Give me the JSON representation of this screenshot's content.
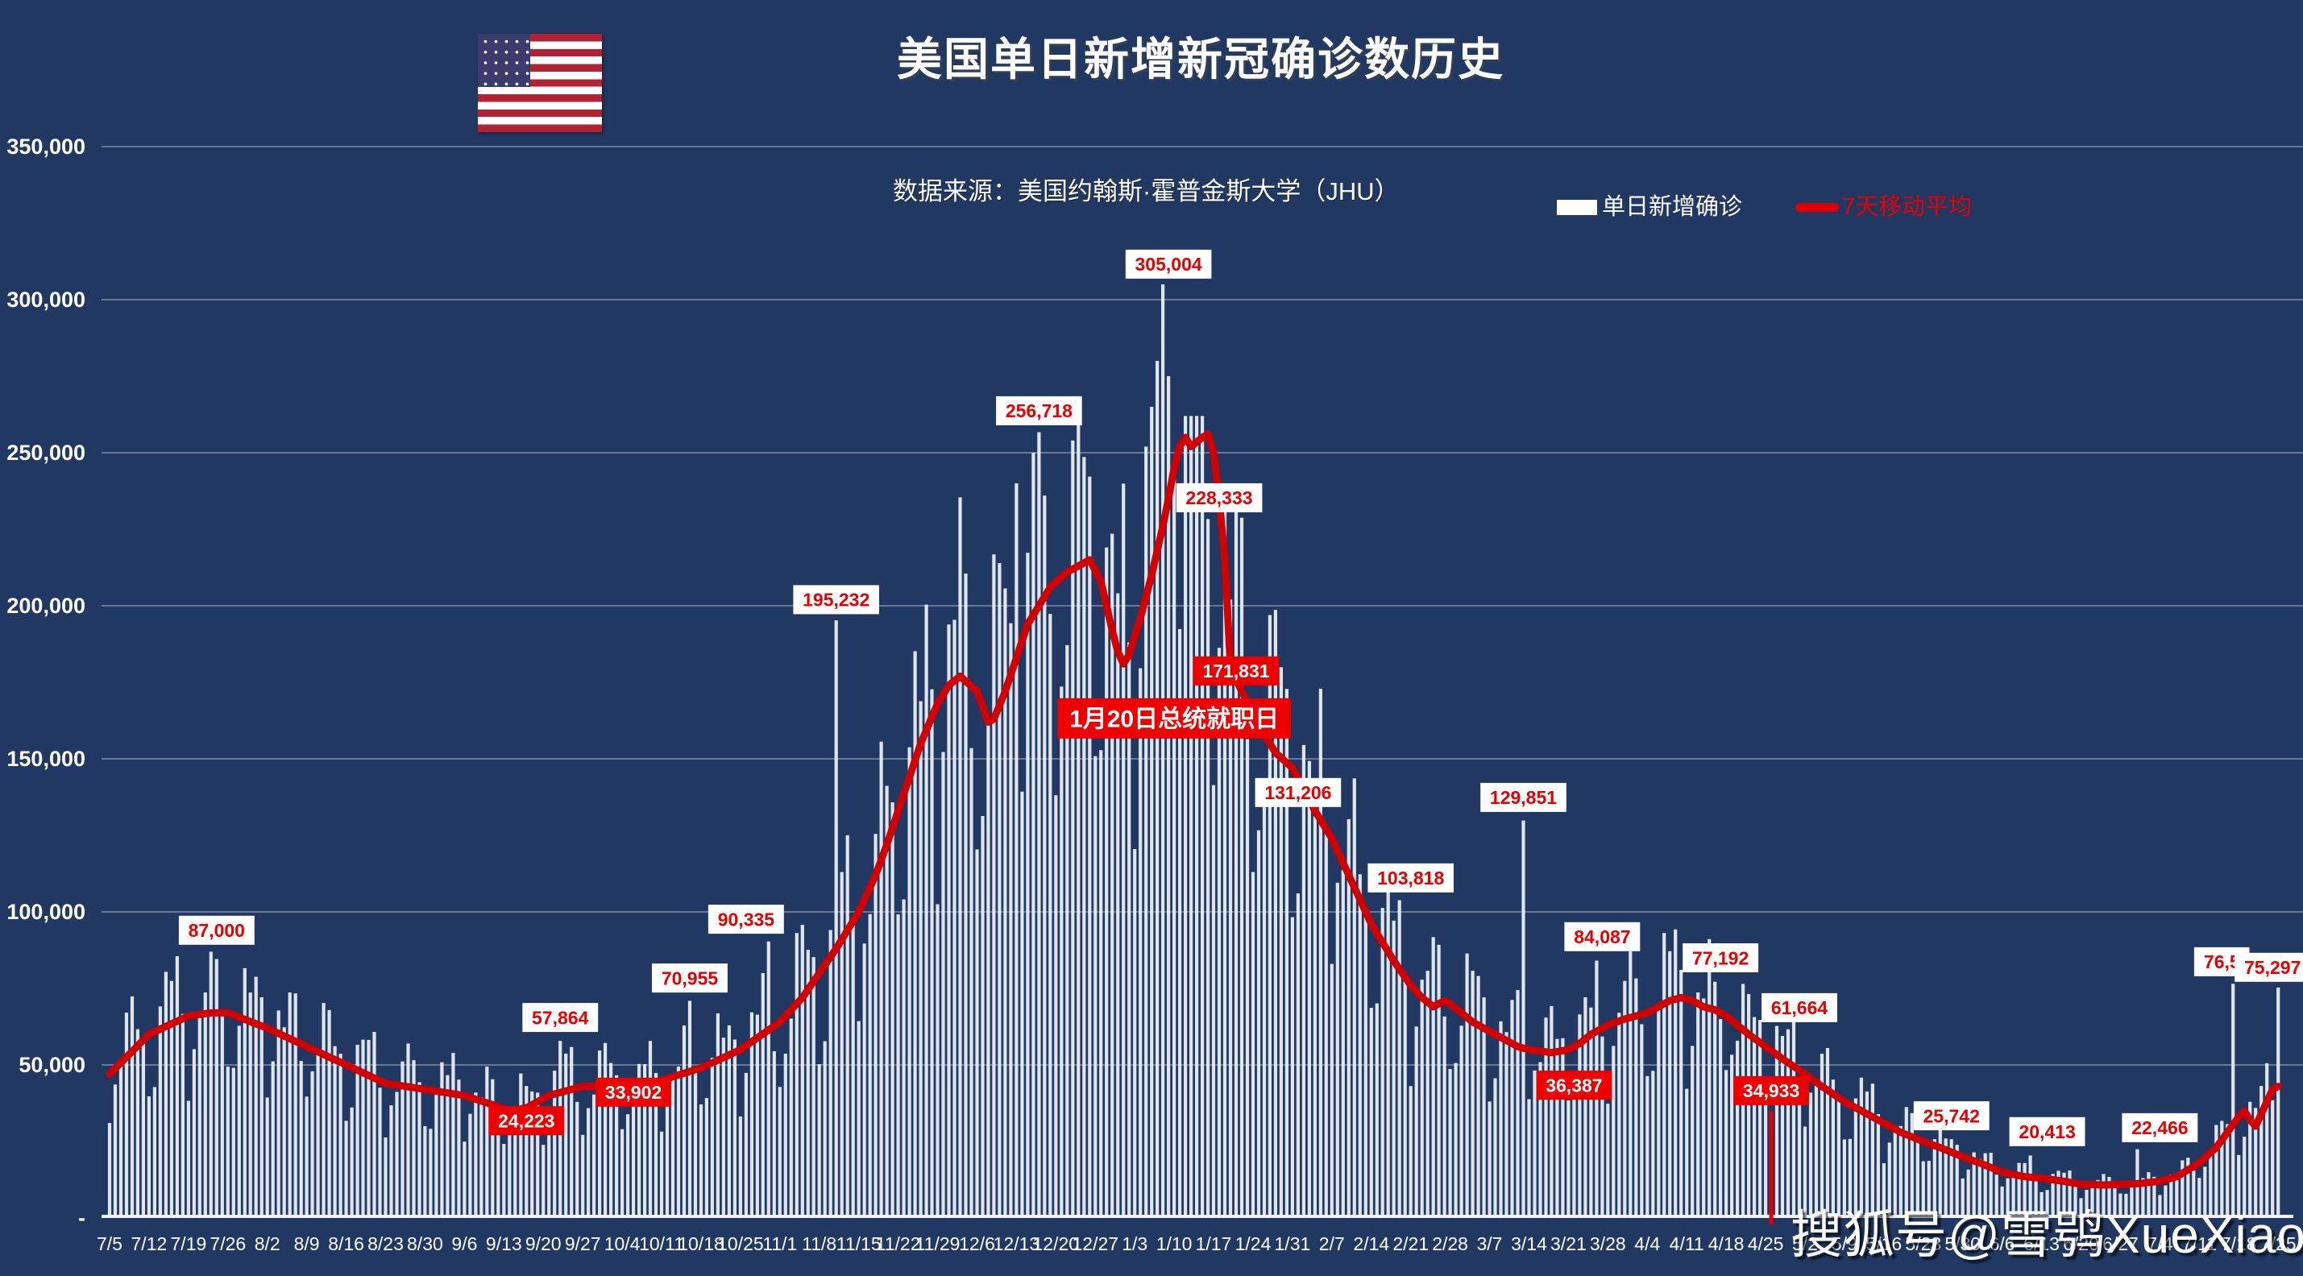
{
  "header": {
    "title": "美国单日新增新冠确诊数历史",
    "source": "数据来源：美国约翰斯·霍普金斯大学（JHU）",
    "legend_bar_label": "单日新增确诊",
    "legend_line_label": "7天移动平均"
  },
  "watermark": "搜狐号@雪鸮XueXiao",
  "colors": {
    "background": "#213862",
    "bar": "#eef2f8",
    "highlight_bar": "#e80000",
    "ma_line": "#d20000",
    "grid": "rgba(255,255,255,0.32)",
    "axis": "#f5f5f5",
    "tick_text": "#ffffff",
    "box_light_bg": "#ffffff",
    "box_light_text": "#e60000",
    "box_dark_bg": "#ef0000",
    "box_dark_text": "#ffffff"
  },
  "chart_data": {
    "type": "bar",
    "title": "美国单日新增新冠确诊数历史",
    "xlabel": "",
    "ylabel": "",
    "ylim": [
      0,
      350000
    ],
    "grid": true,
    "legend_position": "top",
    "n_days": 386,
    "x_tick_labels": [
      "7/5",
      "7/12",
      "7/19",
      "7/26",
      "8/2",
      "8/9",
      "8/16",
      "8/23",
      "8/30",
      "9/6",
      "9/13",
      "9/20",
      "9/27",
      "10/4",
      "10/11",
      "10/18",
      "10/25",
      "11/1",
      "11/8",
      "11/15",
      "11/22",
      "11/29",
      "12/6",
      "12/13",
      "12/20",
      "12/27",
      "1/3",
      "1/10",
      "1/17",
      "1/24",
      "1/31",
      "2/7",
      "2/14",
      "2/21",
      "2/28",
      "3/7",
      "3/14",
      "3/21",
      "3/28",
      "4/4",
      "4/11",
      "4/18",
      "4/25",
      "5/2",
      "5/9",
      "5/16",
      "5/23",
      "5/30",
      "6/6",
      "6/13",
      "6/20",
      "6/27",
      "7/4",
      "7/11",
      "7/18",
      "7/25"
    ],
    "y_ticks": [
      {
        "value": 350000,
        "label": "350,000"
      },
      {
        "value": 300000,
        "label": "300,000"
      },
      {
        "value": 250000,
        "label": "250,000"
      },
      {
        "value": 200000,
        "label": "200,000"
      },
      {
        "value": 150000,
        "label": "150,000"
      },
      {
        "value": 100000,
        "label": "100,000"
      },
      {
        "value": 50000,
        "label": "50,000"
      },
      {
        "value": 0,
        "label": "-"
      }
    ],
    "series": [
      {
        "name": "单日新增确诊",
        "type": "bar",
        "weekday_pattern": [
          0.66,
          0.8,
          1.04,
          1.2,
          1.28,
          1.25,
          1.02
        ],
        "overrides": {
          "18": 87000,
          "70": 24223,
          "80": 57864,
          "92": 33902,
          "103": 70955,
          "117": 90335,
          "129": 195232,
          "161": 240000,
          "164": 250000,
          "165": 256718,
          "166": 236000,
          "184": 252000,
          "185": 265000,
          "186": 280000,
          "187": 305004,
          "188": 275000,
          "189": 246000,
          "195": 228333,
          "214": 131206,
          "229": 103818,
          "251": 129851,
          "264": 84087,
          "285": 77192,
          "298": 61664,
          "324": 25742,
          "341": 20413,
          "360": 22466,
          "377": 76500,
          "385": 75297
        }
      },
      {
        "name": "7天移动平均",
        "type": "line",
        "points": [
          [
            0,
            47000
          ],
          [
            7,
            60000
          ],
          [
            14,
            66000
          ],
          [
            18,
            67000
          ],
          [
            21,
            67000
          ],
          [
            28,
            62000
          ],
          [
            35,
            56000
          ],
          [
            42,
            50000
          ],
          [
            49,
            44000
          ],
          [
            56,
            42000
          ],
          [
            63,
            40000
          ],
          [
            68,
            37000
          ],
          [
            71,
            35000
          ],
          [
            74,
            36000
          ],
          [
            78,
            40000
          ],
          [
            84,
            43000
          ],
          [
            91,
            43000
          ],
          [
            94,
            42000
          ],
          [
            98,
            45000
          ],
          [
            105,
            49000
          ],
          [
            112,
            55000
          ],
          [
            119,
            64000
          ],
          [
            123,
            72000
          ],
          [
            126,
            80000
          ],
          [
            129,
            88000
          ],
          [
            133,
            100000
          ],
          [
            136,
            112000
          ],
          [
            138,
            122000
          ],
          [
            140,
            133000
          ],
          [
            142,
            144000
          ],
          [
            144,
            155000
          ],
          [
            147,
            168000
          ],
          [
            149,
            174000
          ],
          [
            151,
            177000
          ],
          [
            154,
            172000
          ],
          [
            156,
            162000
          ],
          [
            157,
            163000
          ],
          [
            159,
            172000
          ],
          [
            161,
            183000
          ],
          [
            163,
            194000
          ],
          [
            165,
            200000
          ],
          [
            167,
            206000
          ],
          [
            170,
            211000
          ],
          [
            172,
            213000
          ],
          [
            174,
            215000
          ],
          [
            176,
            208000
          ],
          [
            177,
            200000
          ],
          [
            178,
            192000
          ],
          [
            179,
            185000
          ],
          [
            180,
            181000
          ],
          [
            181,
            184000
          ],
          [
            183,
            196000
          ],
          [
            185,
            210000
          ],
          [
            186,
            218000
          ],
          [
            187,
            226000
          ],
          [
            188,
            235000
          ],
          [
            189,
            245000
          ],
          [
            190,
            252000
          ],
          [
            191,
            255000
          ],
          [
            192,
            252000
          ],
          [
            194,
            255000
          ],
          [
            195,
            256000
          ],
          [
            196,
            250000
          ],
          [
            197,
            235000
          ],
          [
            198,
            215000
          ],
          [
            199,
            180000
          ],
          [
            201,
            172000
          ],
          [
            203,
            165000
          ],
          [
            205,
            158000
          ],
          [
            207,
            152000
          ],
          [
            210,
            147000
          ],
          [
            212,
            140000
          ],
          [
            214,
            133000
          ],
          [
            217,
            124000
          ],
          [
            220,
            112000
          ],
          [
            222,
            104000
          ],
          [
            224,
            96000
          ],
          [
            226,
            90000
          ],
          [
            228,
            84000
          ],
          [
            231,
            76000
          ],
          [
            233,
            72000
          ],
          [
            235,
            69000
          ],
          [
            237,
            71000
          ],
          [
            238,
            70000
          ],
          [
            240,
            67000
          ],
          [
            242,
            64000
          ],
          [
            245,
            61000
          ],
          [
            248,
            58000
          ],
          [
            250,
            56000
          ],
          [
            252,
            55000
          ],
          [
            256,
            54000
          ],
          [
            259,
            55000
          ],
          [
            261,
            57000
          ],
          [
            263,
            60000
          ],
          [
            266,
            63000
          ],
          [
            269,
            65000
          ],
          [
            271,
            66000
          ],
          [
            273,
            67000
          ],
          [
            275,
            69000
          ],
          [
            277,
            71000
          ],
          [
            279,
            72000
          ],
          [
            281,
            71000
          ],
          [
            283,
            69000
          ],
          [
            285,
            68000
          ],
          [
            287,
            66000
          ],
          [
            289,
            63000
          ],
          [
            291,
            60000
          ],
          [
            294,
            56000
          ],
          [
            297,
            52000
          ],
          [
            301,
            47000
          ],
          [
            304,
            43000
          ],
          [
            308,
            38000
          ],
          [
            311,
            35000
          ],
          [
            315,
            31000
          ],
          [
            318,
            28000
          ],
          [
            322,
            25000
          ],
          [
            325,
            23000
          ],
          [
            329,
            20000
          ],
          [
            332,
            18000
          ],
          [
            336,
            15000
          ],
          [
            340,
            13500
          ],
          [
            343,
            13000
          ],
          [
            347,
            12000
          ],
          [
            350,
            11000
          ],
          [
            354,
            10800
          ],
          [
            357,
            11000
          ],
          [
            360,
            11200
          ],
          [
            364,
            12000
          ],
          [
            367,
            13500
          ],
          [
            371,
            18000
          ],
          [
            374,
            23000
          ],
          [
            376,
            28000
          ],
          [
            378,
            33000
          ],
          [
            379,
            35000
          ],
          [
            380,
            32000
          ],
          [
            381,
            30000
          ],
          [
            382,
            34000
          ],
          [
            383,
            38000
          ],
          [
            384,
            42000
          ],
          [
            385,
            43000
          ]
        ]
      }
    ],
    "highlight_bar": {
      "day": 295,
      "value": 34933
    },
    "annotations": [
      {
        "label": "87,000",
        "day": 19,
        "value": 94000,
        "style": "light"
      },
      {
        "label": "57,864",
        "day": 80,
        "value": 65500,
        "style": "light"
      },
      {
        "label": "24,223",
        "day": 74,
        "value": 31800,
        "style": "dark"
      },
      {
        "label": "33,902",
        "day": 93,
        "value": 41100,
        "style": "dark"
      },
      {
        "label": "70,955",
        "day": 103,
        "value": 78400,
        "style": "light"
      },
      {
        "label": "90,335",
        "day": 113,
        "value": 97600,
        "style": "light"
      },
      {
        "label": "195,232",
        "day": 129,
        "value": 202000,
        "style": "light"
      },
      {
        "label": "256,718",
        "day": 165,
        "value": 263700,
        "style": "light"
      },
      {
        "label": "305,004",
        "day": 188,
        "value": 311600,
        "style": "light"
      },
      {
        "label": "228,333",
        "day": 197,
        "value": 235300,
        "style": "light"
      },
      {
        "label": "1月20日总统就职日",
        "day": 189,
        "value": 163200,
        "style": "dark",
        "big": true
      },
      {
        "label": "171,831",
        "day": 200,
        "value": 178700,
        "style": "dark"
      },
      {
        "label": "131,206",
        "day": 211,
        "value": 139000,
        "style": "light"
      },
      {
        "label": "103,818",
        "day": 231,
        "value": 111100,
        "style": "light"
      },
      {
        "label": "129,851",
        "day": 251,
        "value": 137400,
        "style": "light"
      },
      {
        "label": "36,387",
        "day": 260,
        "value": 43400,
        "style": "dark"
      },
      {
        "label": "84,087",
        "day": 265,
        "value": 91900,
        "style": "light"
      },
      {
        "label": "77,192",
        "day": 286,
        "value": 85000,
        "style": "light"
      },
      {
        "label": "61,664",
        "day": 300,
        "value": 68700,
        "style": "light"
      },
      {
        "label": "34,933",
        "day": 295,
        "value": 41600,
        "style": "dark"
      },
      {
        "label": "25,742",
        "day": 327,
        "value": 33400,
        "style": "light"
      },
      {
        "label": "20,413",
        "day": 344,
        "value": 28200,
        "style": "light"
      },
      {
        "label": "22,466",
        "day": 364,
        "value": 29500,
        "style": "light"
      },
      {
        "label": "76,5",
        "day": 375,
        "value": 83700,
        "style": "light"
      },
      {
        "label": "75,297",
        "day": 384,
        "value": 81900,
        "style": "light"
      }
    ]
  }
}
